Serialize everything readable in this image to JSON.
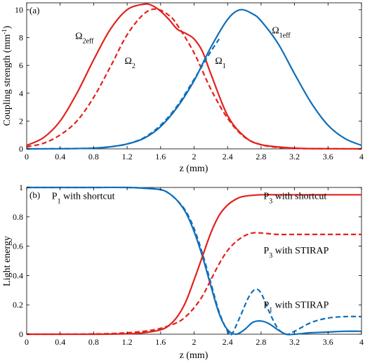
{
  "colors": {
    "red": "#e3211c",
    "blue": "#0f6fba"
  },
  "chart_data": [
    {
      "type": "line",
      "panel_label": "(a)",
      "xlabel": "z (mm)",
      "ylabel": "Coupling strength (mm",
      "ylabel_sup": "-1",
      "ylabel_end": ")",
      "xlim": [
        0,
        4
      ],
      "ylim": [
        0,
        10.5
      ],
      "xticks": [
        "0",
        "0.4",
        "0.8",
        "1.2",
        "1.6",
        "2",
        "2.4",
        "2.8",
        "3.2",
        "3.6",
        "4"
      ],
      "yticks": [
        "0",
        "2",
        "4",
        "6",
        "8",
        "10"
      ],
      "grid": false,
      "series": [
        {
          "key": "omega2eff",
          "color": "#e3211c",
          "style": "solid",
          "x": [
            0,
            0.2,
            0.4,
            0.6,
            0.8,
            1.0,
            1.2,
            1.4,
            1.5,
            1.6,
            1.7,
            1.8,
            1.9,
            2.0,
            2.1,
            2.2,
            2.4,
            2.6,
            2.8,
            3.2,
            3.6,
            4.0
          ],
          "y": [
            0.25,
            0.8,
            2.0,
            4.0,
            6.4,
            8.6,
            10.0,
            10.4,
            10.3,
            9.9,
            9.3,
            8.6,
            8.3,
            7.9,
            7.0,
            5.4,
            2.4,
            0.9,
            0.3,
            0.05,
            0.01,
            0
          ]
        },
        {
          "key": "omega2",
          "color": "#e3211c",
          "style": "dashed",
          "x": [
            0,
            0.2,
            0.4,
            0.6,
            0.8,
            1.0,
            1.2,
            1.4,
            1.55,
            1.7,
            1.8,
            2.0,
            2.2,
            2.4,
            2.6,
            2.8,
            3.0,
            3.2,
            3.6,
            4.0
          ],
          "y": [
            0.15,
            0.4,
            1.0,
            2.0,
            3.7,
            5.9,
            8.2,
            9.7,
            10.05,
            9.6,
            8.9,
            6.9,
            4.3,
            2.2,
            0.85,
            0.3,
            0.1,
            0.03,
            0.01,
            0
          ]
        },
        {
          "key": "omega1eff",
          "color": "#0f6fba",
          "style": "solid",
          "x": [
            0,
            0.4,
            0.8,
            1.0,
            1.2,
            1.4,
            1.6,
            1.8,
            2.0,
            2.2,
            2.4,
            2.55,
            2.7,
            2.8,
            3.0,
            3.2,
            3.4,
            3.6,
            3.8,
            4.0
          ],
          "y": [
            0,
            0.01,
            0.05,
            0.15,
            0.35,
            0.75,
            1.6,
            3.0,
            4.9,
            7.3,
            9.3,
            10.0,
            9.7,
            9.2,
            7.6,
            5.4,
            3.3,
            1.7,
            0.75,
            0.25
          ]
        },
        {
          "key": "omega1",
          "color": "#0f6fba",
          "style": "dashed",
          "x": [
            0,
            0.4,
            0.8,
            1.0,
            1.2,
            1.4,
            1.6,
            1.8,
            2.0,
            2.1,
            2.2,
            2.3
          ],
          "y": [
            0,
            0.01,
            0.05,
            0.15,
            0.35,
            0.8,
            1.7,
            3.1,
            5.0,
            6.0,
            7.0,
            7.9
          ]
        }
      ],
      "annotations": [
        {
          "main": "Ω",
          "sub": "2eff",
          "x": 0.58,
          "y": 7.9
        },
        {
          "main": "Ω",
          "sub": "2",
          "x": 1.17,
          "y": 6.1
        },
        {
          "main": "Ω",
          "sub": "1",
          "x": 2.25,
          "y": 6.1
        },
        {
          "main": "Ω",
          "sub": "1eff",
          "x": 2.93,
          "y": 8.3
        }
      ]
    },
    {
      "type": "line",
      "panel_label": "(b)",
      "xlabel": "z (mm)",
      "ylabel": "Light energy",
      "xlim": [
        0,
        4
      ],
      "ylim": [
        0,
        1
      ],
      "xticks": [
        "0",
        "0.4",
        "0.8",
        "1.2",
        "1.6",
        "2",
        "2.4",
        "2.8",
        "3.2",
        "3.6",
        "4"
      ],
      "yticks": [
        "0",
        "0.2",
        "0.4",
        "0.6",
        "0.8",
        "1"
      ],
      "grid": false,
      "series": [
        {
          "key": "p1_shortcut",
          "color": "#0f6fba",
          "style": "solid",
          "x": [
            0,
            0.4,
            0.8,
            1.2,
            1.4,
            1.6,
            1.7,
            1.8,
            1.9,
            2.0,
            2.1,
            2.2,
            2.3,
            2.4,
            2.5,
            2.6,
            2.7,
            2.8,
            2.9,
            3.0,
            3.1,
            3.2,
            3.4,
            3.6,
            3.8,
            4.0
          ],
          "y": [
            1,
            1,
            1,
            1,
            0.995,
            0.985,
            0.96,
            0.91,
            0.83,
            0.7,
            0.53,
            0.33,
            0.14,
            0.03,
            0.0,
            0.03,
            0.08,
            0.09,
            0.07,
            0.03,
            0.0,
            0.0,
            0.01,
            0.015,
            0.02,
            0.02
          ]
        },
        {
          "key": "p1_stirap",
          "color": "#0f6fba",
          "style": "dashed",
          "x": [
            0,
            0.4,
            0.8,
            1.2,
            1.4,
            1.6,
            1.7,
            1.8,
            1.9,
            2.0,
            2.1,
            2.2,
            2.3,
            2.4,
            2.45,
            2.55,
            2.65,
            2.73,
            2.8,
            2.9,
            3.0,
            3.1,
            3.2,
            3.4,
            3.6,
            3.8,
            4.0
          ],
          "y": [
            1,
            1,
            1,
            1,
            0.995,
            0.985,
            0.96,
            0.91,
            0.84,
            0.72,
            0.55,
            0.35,
            0.15,
            0.02,
            0.0,
            0.12,
            0.25,
            0.305,
            0.28,
            0.15,
            0.04,
            0.0,
            0.02,
            0.08,
            0.11,
            0.12,
            0.12
          ]
        },
        {
          "key": "p3_shortcut",
          "color": "#e3211c",
          "style": "solid",
          "x": [
            0,
            0.4,
            0.8,
            1.2,
            1.4,
            1.6,
            1.7,
            1.8,
            1.9,
            2.0,
            2.1,
            2.2,
            2.3,
            2.4,
            2.5,
            2.6,
            2.8,
            3.0,
            3.2,
            3.6,
            4.0
          ],
          "y": [
            0,
            0,
            0,
            0.003,
            0.01,
            0.03,
            0.06,
            0.12,
            0.22,
            0.37,
            0.53,
            0.69,
            0.81,
            0.88,
            0.92,
            0.94,
            0.95,
            0.95,
            0.95,
            0.95,
            0.95
          ]
        },
        {
          "key": "p3_stirap",
          "color": "#e3211c",
          "style": "dashed",
          "x": [
            0,
            0.4,
            0.8,
            1.0,
            1.2,
            1.4,
            1.6,
            1.8,
            1.9,
            2.0,
            2.1,
            2.2,
            2.3,
            2.4,
            2.5,
            2.6,
            2.7,
            2.8,
            3.0,
            3.2,
            3.6,
            4.0
          ],
          "y": [
            0,
            0,
            0.002,
            0.004,
            0.01,
            0.02,
            0.04,
            0.08,
            0.12,
            0.18,
            0.26,
            0.37,
            0.48,
            0.57,
            0.63,
            0.67,
            0.69,
            0.69,
            0.68,
            0.68,
            0.68,
            0.68
          ]
        }
      ],
      "annotations": [
        {
          "main": "P",
          "sub": "1",
          "rest": " with shortcut",
          "x": 0.3,
          "y": 0.92
        },
        {
          "main": "P",
          "sub": "3",
          "rest": " with shortcut",
          "x": 2.83,
          "y": 0.92
        },
        {
          "main": "P",
          "sub": "3",
          "rest": " with STIRAP",
          "x": 2.83,
          "y": 0.55
        },
        {
          "main": "P",
          "sub": "1",
          "rest": " with STIRAP",
          "x": 2.83,
          "y": 0.18
        }
      ]
    }
  ]
}
